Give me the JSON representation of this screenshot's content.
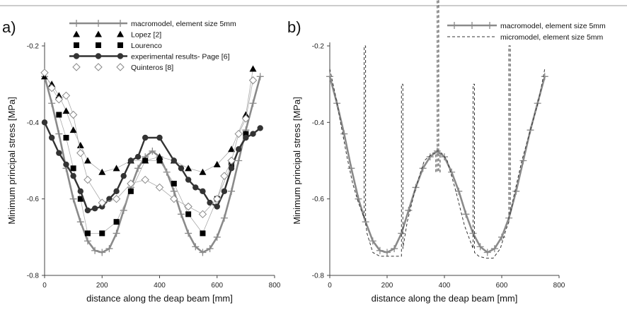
{
  "chart_data": [
    {
      "type": "line",
      "panel_label": "a)",
      "xlabel": "distance along the deap beam [mm]",
      "ylabel": "Minimum principal stress [MPa]",
      "xlim": [
        0,
        800
      ],
      "ylim": [
        -0.8,
        -0.2
      ],
      "x_ticks": [
        "0",
        "200",
        "400",
        "600",
        "800"
      ],
      "y_ticks": [
        "-0.2",
        "-0.4",
        "-0.6",
        "-0.8"
      ],
      "legend_position": "top-left",
      "series": [
        {
          "name": "macromodel, element size 5mm",
          "color": "#8a8a8a",
          "marker": "plus",
          "x": [
            0,
            25,
            50,
            75,
            100,
            125,
            150,
            175,
            200,
            225,
            250,
            275,
            300,
            325,
            350,
            375,
            400,
            425,
            450,
            475,
            500,
            525,
            550,
            575,
            600,
            625,
            650,
            675,
            700,
            725,
            750
          ],
          "y": [
            -0.28,
            -0.35,
            -0.43,
            -0.52,
            -0.6,
            -0.66,
            -0.71,
            -0.735,
            -0.74,
            -0.73,
            -0.69,
            -0.63,
            -0.57,
            -0.52,
            -0.49,
            -0.475,
            -0.49,
            -0.53,
            -0.58,
            -0.64,
            -0.69,
            -0.725,
            -0.74,
            -0.73,
            -0.7,
            -0.65,
            -0.58,
            -0.5,
            -0.42,
            -0.35,
            -0.28
          ]
        },
        {
          "name": "Lopez [2]",
          "color": "#000000",
          "marker": "triangle",
          "x": [
            0,
            25,
            50,
            75,
            100,
            125,
            150,
            200,
            250,
            300,
            350,
            400,
            450,
            500,
            550,
            600,
            650,
            700,
            725
          ],
          "y": [
            -0.28,
            -0.3,
            -0.33,
            -0.37,
            -0.42,
            -0.46,
            -0.5,
            -0.53,
            -0.52,
            -0.5,
            -0.5,
            -0.49,
            -0.5,
            -0.52,
            -0.53,
            -0.51,
            -0.47,
            -0.38,
            -0.26
          ]
        },
        {
          "name": "Lourenco",
          "color": "#000000",
          "marker": "square",
          "x": [
            50,
            75,
            100,
            125,
            150,
            200,
            250,
            300,
            350,
            400,
            450,
            500,
            550,
            600,
            650,
            700
          ],
          "y": [
            -0.38,
            -0.44,
            -0.52,
            -0.6,
            -0.69,
            -0.69,
            -0.66,
            -0.58,
            -0.5,
            -0.5,
            -0.56,
            -0.64,
            -0.69,
            -0.6,
            -0.51,
            -0.43
          ]
        },
        {
          "name": "experimental results- Page [6]",
          "color": "#333333",
          "marker": "circle",
          "x": [
            0,
            25,
            50,
            75,
            100,
            125,
            150,
            175,
            200,
            225,
            250,
            275,
            300,
            325,
            350,
            400,
            450,
            475,
            500,
            525,
            550,
            575,
            600,
            625,
            650,
            675,
            700,
            725,
            750
          ],
          "y": [
            -0.4,
            -0.44,
            -0.48,
            -0.51,
            -0.54,
            -0.58,
            -0.63,
            -0.625,
            -0.62,
            -0.6,
            -0.58,
            -0.54,
            -0.5,
            -0.49,
            -0.44,
            -0.44,
            -0.5,
            -0.52,
            -0.55,
            -0.57,
            -0.58,
            -0.61,
            -0.62,
            -0.58,
            -0.52,
            -0.47,
            -0.44,
            -0.43,
            -0.415
          ]
        },
        {
          "name": "Quinteros [8]",
          "color": "#888888",
          "marker": "diamond",
          "x": [
            0,
            25,
            50,
            75,
            100,
            125,
            150,
            200,
            250,
            300,
            350,
            400,
            450,
            500,
            550,
            600,
            625,
            650,
            675,
            700,
            725
          ],
          "y": [
            -0.27,
            -0.31,
            -0.34,
            -0.33,
            -0.38,
            -0.48,
            -0.55,
            -0.61,
            -0.6,
            -0.56,
            -0.55,
            -0.57,
            -0.6,
            -0.62,
            -0.64,
            -0.6,
            -0.54,
            -0.5,
            -0.43,
            -0.39,
            -0.29
          ]
        }
      ]
    },
    {
      "type": "line",
      "panel_label": "b)",
      "xlabel": "distance along the deap beam [mm]",
      "ylabel": "Minimum principal stress [MPa]",
      "xlim": [
        0,
        800
      ],
      "ylim": [
        -0.8,
        -0.2
      ],
      "x_ticks": [
        "0",
        "200",
        "400",
        "600",
        "800"
      ],
      "y_ticks": [
        "-0.2",
        "-0.4",
        "-0.6",
        "-0.8"
      ],
      "legend_position": "top-right",
      "series": [
        {
          "name": "macromodel, element size 5mm",
          "color": "#8a8a8a",
          "marker": "plus",
          "x": [
            0,
            25,
            50,
            75,
            100,
            125,
            150,
            175,
            200,
            225,
            250,
            275,
            300,
            325,
            350,
            375,
            400,
            425,
            450,
            475,
            500,
            525,
            550,
            575,
            600,
            625,
            650,
            675,
            700,
            725,
            750
          ],
          "y": [
            -0.28,
            -0.35,
            -0.43,
            -0.52,
            -0.6,
            -0.66,
            -0.71,
            -0.735,
            -0.74,
            -0.73,
            -0.69,
            -0.63,
            -0.57,
            -0.52,
            -0.49,
            -0.475,
            -0.49,
            -0.53,
            -0.58,
            -0.64,
            -0.69,
            -0.725,
            -0.74,
            -0.73,
            -0.7,
            -0.65,
            -0.58,
            -0.5,
            -0.42,
            -0.35,
            -0.28
          ]
        },
        {
          "name": "micromodel, element size 5mm",
          "color": "#333333",
          "marker": "none",
          "dashed": true,
          "x": [
            0,
            20,
            40,
            60,
            80,
            100,
            115,
            120,
            120,
            125,
            125,
            130,
            150,
            175,
            200,
            225,
            245,
            250,
            250,
            255,
            255,
            270,
            300,
            330,
            360,
            370,
            370,
            375,
            375,
            380,
            380,
            385,
            385,
            390,
            410,
            440,
            470,
            495,
            500,
            500,
            505,
            505,
            520,
            545,
            570,
            595,
            615,
            625,
            625,
            630,
            630,
            640,
            670,
            700,
            730,
            750
          ],
          "y": [
            -0.26,
            -0.33,
            -0.41,
            -0.49,
            -0.56,
            -0.61,
            -0.64,
            -0.65,
            -0.2,
            -0.2,
            -0.66,
            -0.69,
            -0.74,
            -0.75,
            -0.75,
            -0.75,
            -0.75,
            -0.75,
            -0.3,
            -0.3,
            -0.73,
            -0.66,
            -0.57,
            -0.5,
            -0.48,
            -0.48,
            -0.53,
            -0.53,
            -0.08,
            -0.08,
            -0.53,
            -0.53,
            -0.48,
            -0.48,
            -0.5,
            -0.58,
            -0.67,
            -0.72,
            -0.73,
            -0.3,
            -0.3,
            -0.74,
            -0.75,
            -0.755,
            -0.755,
            -0.73,
            -0.68,
            -0.66,
            -0.2,
            -0.2,
            -0.64,
            -0.6,
            -0.5,
            -0.42,
            -0.34,
            -0.26
          ]
        }
      ]
    }
  ]
}
